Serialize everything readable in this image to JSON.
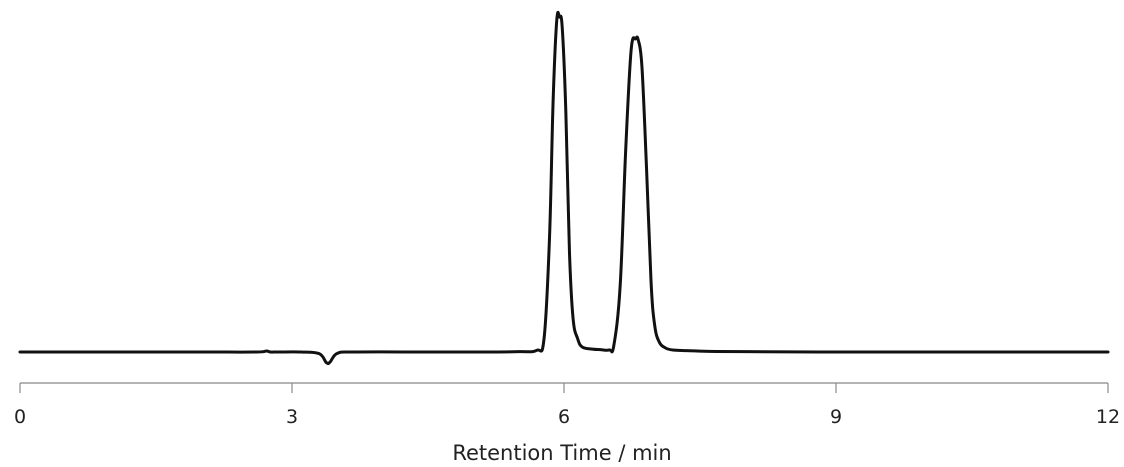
{
  "chart_data": {
    "type": "line",
    "title": "",
    "xlabel": "Retention Time / min",
    "ylabel": "",
    "xlim": [
      0,
      12
    ],
    "ylim": [
      -0.05,
      1.0
    ],
    "xticks": [
      0,
      3,
      6,
      9,
      12
    ],
    "xtick_labels": [
      "0",
      "3",
      "6",
      "9",
      "12"
    ],
    "grid": false,
    "series": [
      {
        "line_color": "#111111",
        "x": [
          0,
          1,
          2,
          2.6,
          2.72,
          2.76,
          2.85,
          3.1,
          3.3,
          3.38,
          3.42,
          3.5,
          3.7,
          4.5,
          5.0,
          5.5,
          5.7,
          5.78,
          5.84,
          5.88,
          5.92,
          5.95,
          5.98,
          6.02,
          6.06,
          6.1,
          6.15,
          6.2,
          6.3,
          6.4,
          6.5,
          6.55,
          6.62,
          6.68,
          6.74,
          6.79,
          6.82,
          6.86,
          6.91,
          6.96,
          7.0,
          7.05,
          7.12,
          7.2,
          7.35,
          7.6,
          8.0,
          9.0,
          10.0,
          11.0,
          12.0
        ],
        "y": [
          0,
          0,
          0,
          0,
          0.003,
          0,
          0,
          0,
          -0.005,
          -0.032,
          -0.03,
          -0.004,
          0,
          0,
          0,
          0.001,
          0.005,
          0.04,
          0.34,
          0.75,
          0.99,
          1.0,
          0.97,
          0.72,
          0.3,
          0.1,
          0.04,
          0.015,
          0.009,
          0.007,
          0.006,
          0.02,
          0.2,
          0.6,
          0.9,
          0.935,
          0.93,
          0.85,
          0.55,
          0.21,
          0.08,
          0.03,
          0.012,
          0.006,
          0.004,
          0.002,
          0.001,
          0,
          0,
          0,
          0
        ]
      }
    ]
  }
}
